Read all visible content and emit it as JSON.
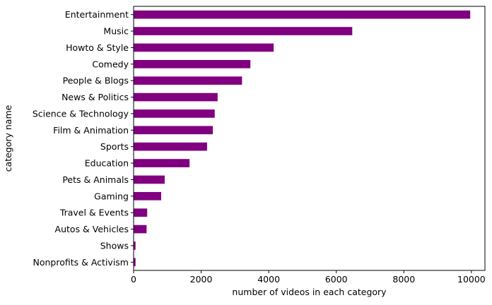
{
  "chart_data": {
    "type": "bar",
    "orientation": "horizontal",
    "title": "",
    "xlabel": "number of videos in each category",
    "ylabel": "category name",
    "categories": [
      "Entertainment",
      "Music",
      "Howto & Style",
      "Comedy",
      "People & Blogs",
      "News & Politics",
      "Science & Technology",
      "Film & Animation",
      "Sports",
      "Education",
      "Pets & Animals",
      "Gaming",
      "Travel & Events",
      "Autos & Vehicles",
      "Shows",
      "Nonprofits & Activism"
    ],
    "values": [
      9964,
      6472,
      4146,
      3457,
      3210,
      2487,
      2401,
      2345,
      2174,
      1656,
      920,
      817,
      402,
      384,
      57,
      57
    ],
    "xlim": [
      0,
      10400
    ],
    "xticks": [
      0,
      2000,
      4000,
      6000,
      8000,
      10000
    ],
    "xtick_labels": [
      "0",
      "2000",
      "4000",
      "6000",
      "8000",
      "10000"
    ],
    "bar_color": "#800080",
    "grid": false,
    "legend": "none"
  }
}
